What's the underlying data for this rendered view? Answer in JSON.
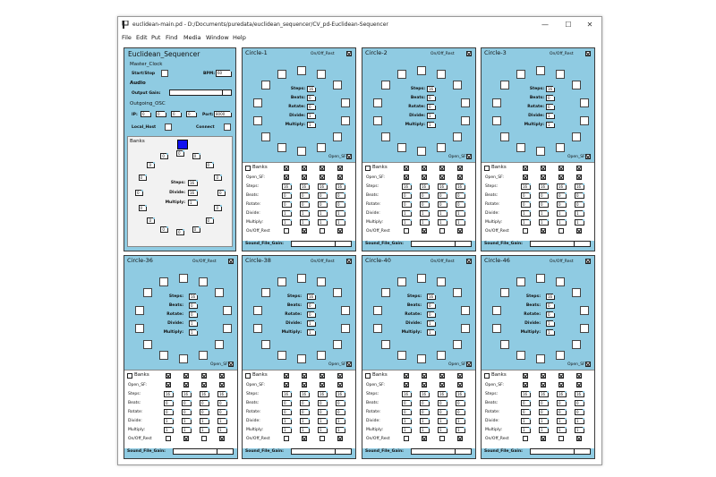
{
  "window": {
    "title": "euclidean-main.pd - D:/Documents/puredata/euclidean_sequencer/CV_pd-Euclidean-Sequencer",
    "menu": [
      "File",
      "Edit",
      "Put",
      "Find",
      "Media",
      "Window",
      "Help"
    ],
    "controls": {
      "minimize": "—",
      "maximize": "☐",
      "close": "✕"
    }
  },
  "main_panel": {
    "title": "Euclidean_Sequencer",
    "master_clock": "Master_Clock",
    "start_stop": "Start/Stop",
    "bpm_label": "BPM:",
    "bpm": "60",
    "audio": "Audio",
    "output_gain": "Output Gain:",
    "output_gain_level": 0.85,
    "osc": "Outgoing_OSC",
    "ip_label": "IP:",
    "ip": [
      "0",
      "0",
      "0",
      "0"
    ],
    "port_label": "Port:",
    "port": "8000",
    "local_host": "Local_Host",
    "connect": "Connect",
    "banks": "Banks",
    "ring_values": [
      "0",
      "0",
      "0",
      "0",
      "0",
      "0",
      "0",
      "0",
      "0",
      "0",
      "0",
      "0",
      "0",
      "0",
      "0",
      "0"
    ],
    "params": [
      {
        "label": "Steps:",
        "value": "16"
      },
      {
        "label": "Divide:",
        "value": "16"
      },
      {
        "label": "Multiply:",
        "value": "1"
      }
    ]
  },
  "circles": [
    {
      "title": "Circle-1"
    },
    {
      "title": "Circle-2"
    },
    {
      "title": "Circle-3"
    },
    {
      "title": "Circle-36"
    },
    {
      "title": "Circle-38"
    },
    {
      "title": "Circle-40"
    },
    {
      "title": "Circle-46"
    }
  ],
  "circle_params": [
    {
      "label": "Steps:",
      "value": "16"
    },
    {
      "label": "Beats:",
      "value": "0"
    },
    {
      "label": "Rotate:",
      "value": "0"
    },
    {
      "label": "Divide:",
      "value": "1"
    },
    {
      "label": "Multiply:",
      "value": "1"
    }
  ],
  "labels": {
    "onoff_rest": "On/Off_Rest",
    "open_sf": "Open_SF",
    "banks": "Banks",
    "sound_file_gain": "Sound_File_Gain:",
    "onoff_rest_row": "On/Off_Rest"
  },
  "bank_rows": [
    {
      "label": "Open_SF:",
      "values": [
        "",
        "",
        "",
        ""
      ]
    },
    {
      "label": "Steps:",
      "values": [
        "16",
        "16",
        "16",
        "16"
      ]
    },
    {
      "label": "Beats:",
      "values": [
        "0",
        "0",
        "0",
        "0"
      ]
    },
    {
      "label": "Rotate:",
      "values": [
        "0",
        "0",
        "0",
        "0"
      ]
    },
    {
      "label": "Divide:",
      "values": [
        "1",
        "1",
        "1",
        "1"
      ]
    },
    {
      "label": "Multiply:",
      "values": [
        "1",
        "1",
        "1",
        "1"
      ]
    }
  ],
  "sound_file_gain_level": 0.72
}
